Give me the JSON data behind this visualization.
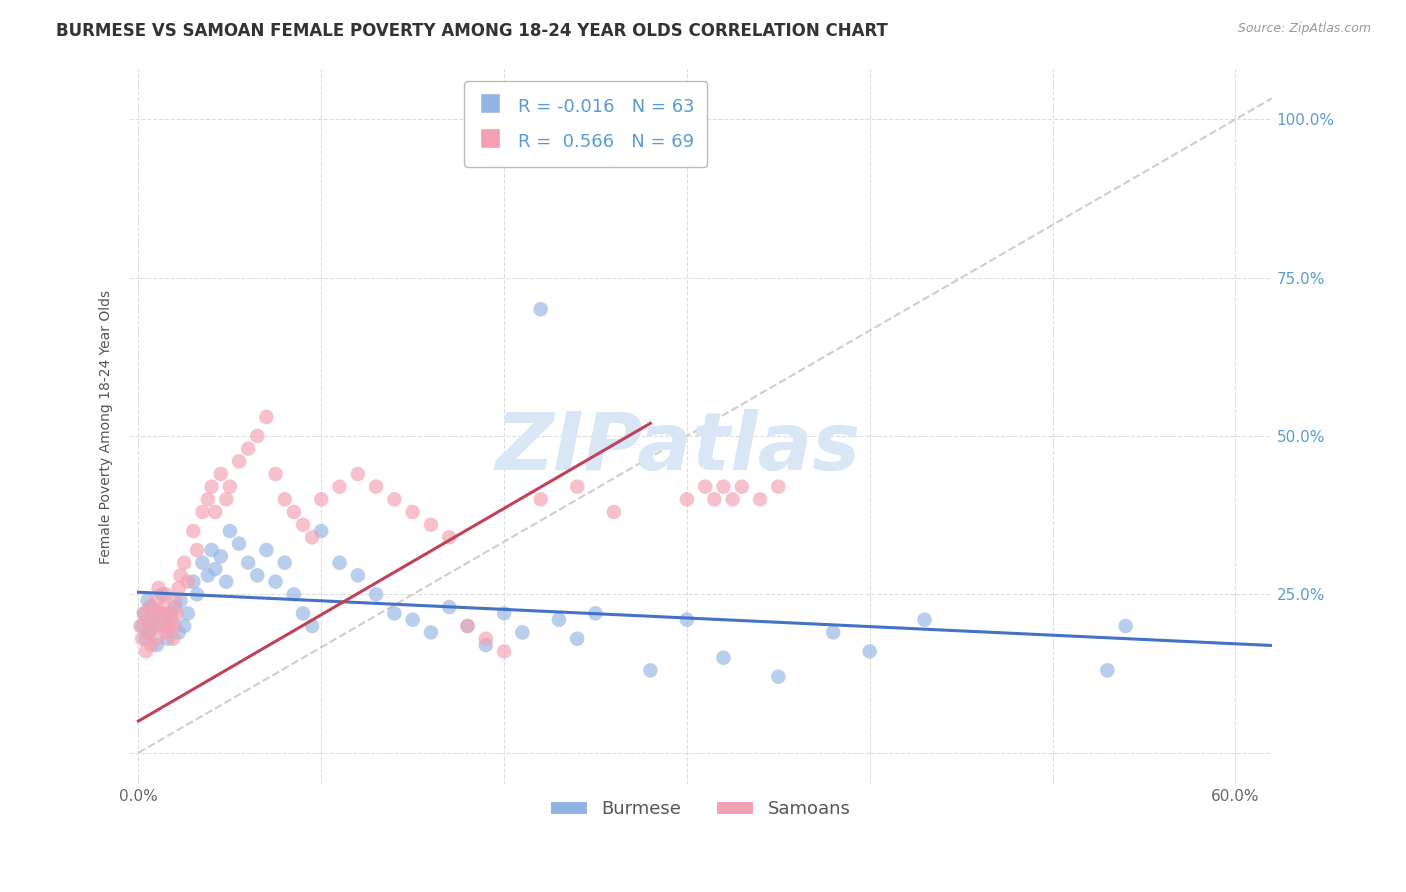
{
  "title": "BURMESE VS SAMOAN FEMALE POVERTY AMONG 18-24 YEAR OLDS CORRELATION CHART",
  "source": "Source: ZipAtlas.com",
  "ylabel": "Female Poverty Among 18-24 Year Olds",
  "xlim": [
    -0.005,
    0.62
  ],
  "ylim": [
    -0.05,
    1.08
  ],
  "xtick_positions": [
    0.0,
    0.1,
    0.2,
    0.3,
    0.4,
    0.5,
    0.6
  ],
  "xticklabels": [
    "0.0%",
    "",
    "",
    "",
    "",
    "",
    "60.0%"
  ],
  "ytick_positions": [
    0.0,
    0.25,
    0.5,
    0.75,
    1.0
  ],
  "yticklabels_right": [
    "",
    "25.0%",
    "50.0%",
    "75.0%",
    "100.0%"
  ],
  "burmese_R": -0.016,
  "burmese_N": 63,
  "samoan_R": 0.566,
  "samoan_N": 69,
  "burmese_color": "#92B4E3",
  "samoan_color": "#F4A0B0",
  "burmese_line_color": "#4472C4",
  "samoan_line_color": "#C0415A",
  "diagonal_color": "#C8C8C8",
  "grid_color": "#DDDDDD",
  "watermark_color": "#D8E6F5",
  "watermark": "ZIPatlas",
  "legend_label_burmese": "Burmese",
  "legend_label_samoans": "Samoans",
  "title_fontsize": 12,
  "axis_label_fontsize": 10,
  "tick_fontsize": 11,
  "legend_fontsize": 13,
  "marker_size": 110,
  "marker_alpha": 0.65,
  "burmese_x": [
    0.002,
    0.003,
    0.004,
    0.005,
    0.006,
    0.007,
    0.008,
    0.009,
    0.01,
    0.012,
    0.013,
    0.015,
    0.016,
    0.017,
    0.018,
    0.02,
    0.022,
    0.023,
    0.025,
    0.027,
    0.03,
    0.032,
    0.035,
    0.038,
    0.04,
    0.042,
    0.045,
    0.048,
    0.05,
    0.055,
    0.06,
    0.065,
    0.07,
    0.075,
    0.08,
    0.085,
    0.09,
    0.095,
    0.1,
    0.11,
    0.12,
    0.13,
    0.14,
    0.15,
    0.16,
    0.17,
    0.18,
    0.19,
    0.2,
    0.21,
    0.22,
    0.23,
    0.24,
    0.25,
    0.28,
    0.3,
    0.32,
    0.35,
    0.38,
    0.4,
    0.43,
    0.53,
    0.54
  ],
  "burmese_y": [
    0.2,
    0.22,
    0.18,
    0.24,
    0.19,
    0.23,
    0.21,
    0.2,
    0.17,
    0.22,
    0.25,
    0.2,
    0.18,
    0.22,
    0.21,
    0.23,
    0.19,
    0.24,
    0.2,
    0.22,
    0.27,
    0.25,
    0.3,
    0.28,
    0.32,
    0.29,
    0.31,
    0.27,
    0.35,
    0.33,
    0.3,
    0.28,
    0.32,
    0.27,
    0.3,
    0.25,
    0.22,
    0.2,
    0.35,
    0.3,
    0.28,
    0.25,
    0.22,
    0.21,
    0.19,
    0.23,
    0.2,
    0.17,
    0.22,
    0.19,
    0.7,
    0.21,
    0.18,
    0.22,
    0.13,
    0.21,
    0.15,
    0.12,
    0.19,
    0.16,
    0.21,
    0.13,
    0.2
  ],
  "samoan_x": [
    0.001,
    0.002,
    0.003,
    0.004,
    0.005,
    0.005,
    0.006,
    0.007,
    0.008,
    0.009,
    0.01,
    0.01,
    0.011,
    0.012,
    0.013,
    0.014,
    0.015,
    0.015,
    0.016,
    0.017,
    0.018,
    0.019,
    0.02,
    0.02,
    0.021,
    0.022,
    0.023,
    0.025,
    0.027,
    0.03,
    0.032,
    0.035,
    0.038,
    0.04,
    0.042,
    0.045,
    0.048,
    0.05,
    0.055,
    0.06,
    0.065,
    0.07,
    0.075,
    0.08,
    0.085,
    0.09,
    0.095,
    0.1,
    0.11,
    0.12,
    0.13,
    0.14,
    0.15,
    0.16,
    0.17,
    0.18,
    0.19,
    0.2,
    0.22,
    0.24,
    0.26,
    0.3,
    0.31,
    0.315,
    0.32,
    0.325,
    0.33,
    0.34,
    0.35
  ],
  "samoan_y": [
    0.2,
    0.18,
    0.22,
    0.16,
    0.21,
    0.19,
    0.23,
    0.17,
    0.2,
    0.22,
    0.24,
    0.18,
    0.26,
    0.22,
    0.2,
    0.23,
    0.25,
    0.19,
    0.21,
    0.2,
    0.22,
    0.18,
    0.24,
    0.2,
    0.22,
    0.26,
    0.28,
    0.3,
    0.27,
    0.35,
    0.32,
    0.38,
    0.4,
    0.42,
    0.38,
    0.44,
    0.4,
    0.42,
    0.46,
    0.48,
    0.5,
    0.53,
    0.44,
    0.4,
    0.38,
    0.36,
    0.34,
    0.4,
    0.42,
    0.44,
    0.42,
    0.4,
    0.38,
    0.36,
    0.34,
    0.2,
    0.18,
    0.16,
    0.4,
    0.42,
    0.38,
    0.4,
    0.42,
    0.4,
    0.42,
    0.4,
    0.42,
    0.4,
    0.42
  ]
}
